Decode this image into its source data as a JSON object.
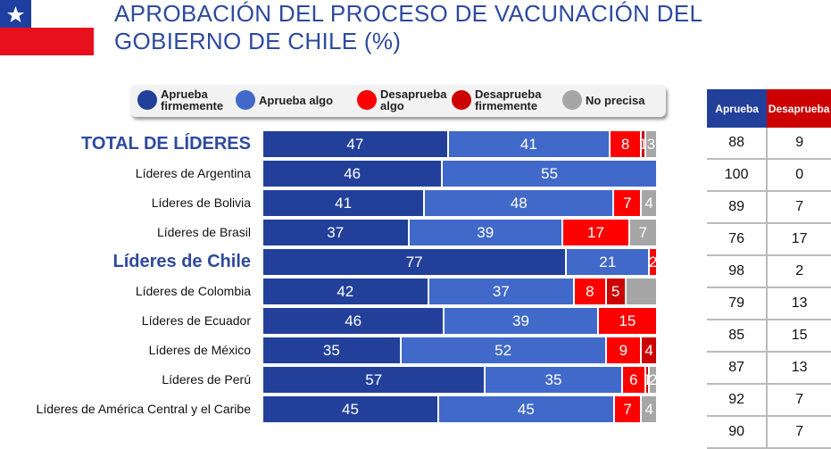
{
  "title": "APROBACIÓN DEL PROCESO DE VACUNACIÓN DEL GOBIERNO DE CHILE (%)",
  "colors": {
    "aprueba_firmemente": "#22409a",
    "aprueba_algo": "#4169c9",
    "desaprueba_algo": "#ff0000",
    "desaprueba_firmemente": "#cc0000",
    "no_precisa": "#a6a6a6",
    "title": "#2e4a9e"
  },
  "chart_data": {
    "type": "bar",
    "orientation": "horizontal",
    "stacked": true,
    "title": "APROBACIÓN DEL PROCESO DE VACUNACIÓN DEL GOBIERNO DE CHILE (%)",
    "legend": [
      "Aprueba firmemente",
      "Aprueba algo",
      "Desaprueba algo",
      "Desaprueba firmemente",
      "No precisa"
    ],
    "legend_position": "top",
    "categories": [
      "TOTAL DE LÍDERES",
      "Líderes de Argentina",
      "Líderes de Bolivia",
      "Líderes de Brasil",
      "Líderes de Chile",
      "Líderes de Colombia",
      "Líderes de Ecuador",
      "Líderes de México",
      "Líderes de Perú",
      "Líderes de América Central y el Caribe"
    ],
    "highlighted": [
      0,
      4
    ],
    "series": [
      {
        "name": "Aprueba firmemente",
        "values": [
          47,
          46,
          41,
          37,
          77,
          42,
          46,
          35,
          57,
          45
        ]
      },
      {
        "name": "Aprueba algo",
        "values": [
          41,
          55,
          48,
          39,
          21,
          37,
          39,
          52,
          35,
          45
        ]
      },
      {
        "name": "Desaprueba algo",
        "values": [
          8,
          0,
          7,
          17,
          2,
          8,
          15,
          9,
          6,
          7
        ]
      },
      {
        "name": "Desaprueba firmemente",
        "values": [
          1,
          0,
          0,
          0,
          0,
          5,
          0,
          4,
          1,
          0
        ]
      },
      {
        "name": "No precisa",
        "values": [
          3,
          0,
          4,
          7,
          0,
          8,
          0,
          0,
          2,
          4
        ]
      }
    ],
    "unlabeled": [
      [
        5,
        4
      ]
    ]
  },
  "table": {
    "headers": [
      "Aprueba",
      "Desaprueba"
    ],
    "rows": [
      [
        "88",
        "9"
      ],
      [
        "100",
        "0"
      ],
      [
        "89",
        "7"
      ],
      [
        "76",
        "17"
      ],
      [
        "98",
        "2"
      ],
      [
        "79",
        "13"
      ],
      [
        "85",
        "15"
      ],
      [
        "87",
        "13"
      ],
      [
        "92",
        "7"
      ],
      [
        "90",
        "7"
      ]
    ]
  }
}
